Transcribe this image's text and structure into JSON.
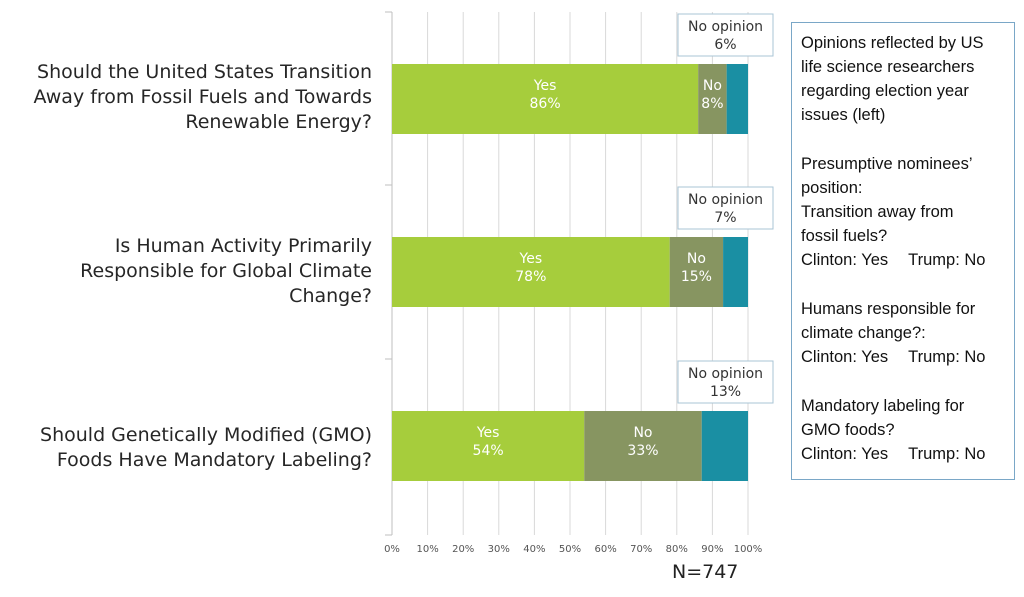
{
  "chart_data": {
    "type": "bar",
    "orientation": "horizontal",
    "stacked": true,
    "categories": [
      "Should the United States Transition Away from Fossil Fuels and Towards Renewable Energy?",
      "Is Human Activity Primarily Responsible for Global Climate Change?",
      "Should Genetically Modified (GMO) Foods Have Mandatory Labeling?"
    ],
    "series": [
      {
        "name": "Yes",
        "values": [
          86,
          78,
          54
        ],
        "color": "#a6cd3c",
        "labels": [
          "86%",
          "78%",
          "54%"
        ]
      },
      {
        "name": "No",
        "values": [
          8,
          15,
          33
        ],
        "color": "#879561",
        "labels": [
          "8%",
          "15%",
          "33%"
        ]
      },
      {
        "name": "No opinion",
        "values": [
          6,
          7,
          13
        ],
        "color": "#1a8fa3",
        "labels": [
          "6%",
          "7%",
          "13%"
        ]
      }
    ],
    "xlim": [
      0,
      100
    ],
    "xticks": [
      "0%",
      "10%",
      "20%",
      "30%",
      "40%",
      "50%",
      "60%",
      "70%",
      "80%",
      "90%",
      "100%"
    ],
    "grid": true,
    "annotation": "N=747"
  },
  "sidebar": {
    "intro": [
      "Opinions reflected by US",
      "life science researchers",
      "regarding election year",
      "issues (left)"
    ],
    "heading": [
      "Presumptive nominees’",
      "position:"
    ],
    "items": [
      {
        "question": [
          "Transition away from",
          "fossil fuels?"
        ],
        "clinton": "Clinton: Yes",
        "trump": "Trump: No"
      },
      {
        "question": [
          "Humans responsible for",
          "climate change?:"
        ],
        "clinton": "Clinton: Yes",
        "trump": "Trump: No"
      },
      {
        "question": [
          "Mandatory labeling for",
          "GMO foods?"
        ],
        "clinton": "Clinton: Yes",
        "trump": "Trump: No"
      }
    ]
  }
}
